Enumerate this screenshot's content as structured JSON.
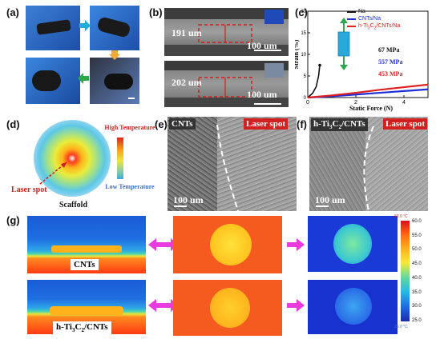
{
  "panels": {
    "a": "(a)",
    "b": "(b)",
    "c": "(c)",
    "d": "(d)",
    "e": "(e)",
    "f": "(f)",
    "g": "(g)"
  },
  "panel_b": {
    "top_thickness": "191 um",
    "top_scale": "100 um",
    "bottom_thickness": "202 um",
    "bottom_scale": "100 um"
  },
  "chart_data": {
    "type": "line",
    "xlabel": "Static Force (N)",
    "ylabel": "Strain (%)",
    "xlim": [
      0,
      5
    ],
    "ylim": [
      0,
      20
    ],
    "xticks": [
      0,
      2,
      4
    ],
    "yticks": [
      0,
      5,
      10,
      15,
      20
    ],
    "legend": "top-right",
    "series": [
      {
        "name": "Na",
        "color": "#111111",
        "x": [
          0,
          0.2,
          0.35,
          0.45,
          0.5
        ],
        "y": [
          0,
          1.0,
          2.5,
          5.0,
          7.5
        ]
      },
      {
        "name": "CNTs/Na",
        "color": "#1f2fd8",
        "x": [
          0,
          1,
          2,
          3,
          4,
          5
        ],
        "y": [
          0,
          0.3,
          0.7,
          1.1,
          1.5,
          1.9
        ]
      },
      {
        "name": "h-Ti3C2/CNTs/Na",
        "color": "#e01f1f",
        "x": [
          0,
          1,
          2,
          3,
          4,
          5
        ],
        "y": [
          0,
          0.5,
          1.1,
          1.8,
          2.4,
          3.0
        ]
      }
    ],
    "annotations": [
      {
        "text": "67  MPa",
        "color": "#111111"
      },
      {
        "text": "557 MPa",
        "color": "#1f2fd8"
      },
      {
        "text": "453 MPa",
        "color": "#e01f1f"
      }
    ]
  },
  "legend_labels": {
    "na": "Na",
    "cnts": "CNTs/Na",
    "h_base": "h-Ti",
    "h_sub3": "3",
    "h_mid": "C",
    "h_sub2": "2",
    "h_end": "/CNTs/Na"
  },
  "panel_d": {
    "high_label": "High Temperature",
    "low_label": "Low Temperature",
    "laser_label": "Laser spot",
    "scaffold_label": "Scaffold"
  },
  "panel_e": {
    "material": "CNTs",
    "laser": "Laser spot",
    "scale": "100 um"
  },
  "panel_f": {
    "material_base": "h-Ti",
    "sub3": "3",
    "material_mid": "C",
    "sub2": "2",
    "material_end": "/CNTs",
    "laser": "Laser spot",
    "scale": "100 um"
  },
  "panel_g": {
    "top_label": "CNTs",
    "bottom_label_base": "h-Ti",
    "bottom_sub3": "3",
    "bottom_mid": "C",
    "bottom_sub2": "2",
    "bottom_end": "/CNTs",
    "colorbar_top": "60.0 °C",
    "colorbar_ticks": [
      "60.0",
      "55.0",
      "50.0",
      "45.0",
      "40.0",
      "35.0",
      "30.0",
      "25.0"
    ],
    "colorbar_bottom": "25.0 °C"
  },
  "colors": {
    "accent_blue": "#29a9d8",
    "accent_orange": "#f2a93b",
    "accent_green": "#2aa84a",
    "arrow_pink": "#e83adf",
    "laser_red": "#d21f1f"
  }
}
